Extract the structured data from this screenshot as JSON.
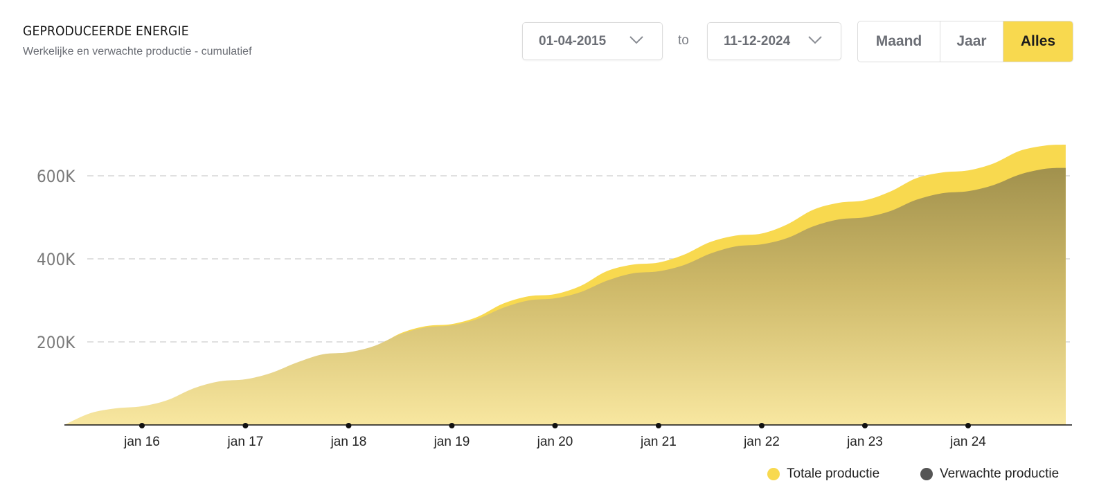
{
  "header": {
    "title": "GEPRODUCEERDE ENERGIE",
    "subtitle": "Werkelijke en verwachte productie - cumulatief"
  },
  "date_range": {
    "from": "01-04-2015",
    "separator": "to",
    "to": "11-12-2024"
  },
  "period_toggle": {
    "options": [
      "Maand",
      "Jaar",
      "Alles"
    ],
    "selected": "Alles"
  },
  "colors": {
    "actual": "#f8d94f",
    "expected": "#a89a55",
    "legend_expected": "#555555",
    "axis": "#111111",
    "grid": "#d5d5d5"
  },
  "chart_data": {
    "type": "area",
    "title": "GEPRODUCEERDE ENERGIE",
    "subtitle": "Werkelijke en verwachte productie - cumulatief",
    "xlabel": "",
    "ylabel": "",
    "x_ticks": [
      "jan 16",
      "jan 17",
      "jan 18",
      "jan 19",
      "jan 20",
      "jan 21",
      "jan 22",
      "jan 23",
      "jan 24"
    ],
    "y_ticks": [
      {
        "value": 200000,
        "label": "200K"
      },
      {
        "value": 400000,
        "label": "400K"
      },
      {
        "value": 600000,
        "label": "600K"
      }
    ],
    "ylim": [
      0,
      700000
    ],
    "xlim": [
      "2015-04-01",
      "2024-12-11"
    ],
    "grid": "horizontal dashed",
    "legend_position": "bottom-right",
    "series": [
      {
        "name": "Totale productie",
        "color": "#f8d94f",
        "points": [
          [
            "2015-04-01",
            0
          ],
          [
            "2015-07-01",
            12000
          ],
          [
            "2015-10-01",
            19000
          ],
          [
            "2016-01-01",
            22000
          ],
          [
            "2016-04-01",
            35000
          ],
          [
            "2016-07-01",
            65000
          ],
          [
            "2016-10-01",
            90000
          ],
          [
            "2017-01-01",
            97000
          ],
          [
            "2017-04-01",
            110000
          ],
          [
            "2017-07-01",
            140000
          ],
          [
            "2017-10-01",
            162000
          ],
          [
            "2018-01-01",
            168000
          ],
          [
            "2018-04-01",
            185000
          ],
          [
            "2018-07-01",
            220000
          ],
          [
            "2018-10-01",
            238000
          ],
          [
            "2019-01-01",
            243000
          ],
          [
            "2019-04-01",
            260000
          ],
          [
            "2019-07-01",
            292000
          ],
          [
            "2019-10-01",
            310000
          ],
          [
            "2020-01-01",
            315000
          ],
          [
            "2020-04-01",
            335000
          ],
          [
            "2020-07-01",
            370000
          ],
          [
            "2020-10-01",
            386000
          ],
          [
            "2021-01-01",
            391000
          ],
          [
            "2021-04-01",
            410000
          ],
          [
            "2021-07-01",
            440000
          ],
          [
            "2021-10-01",
            456000
          ],
          [
            "2022-01-01",
            461000
          ],
          [
            "2022-04-01",
            483000
          ],
          [
            "2022-07-01",
            518000
          ],
          [
            "2022-10-01",
            535000
          ],
          [
            "2023-01-01",
            541000
          ],
          [
            "2023-04-01",
            562000
          ],
          [
            "2023-07-01",
            594000
          ],
          [
            "2023-10-01",
            608000
          ],
          [
            "2024-01-01",
            613000
          ],
          [
            "2024-04-01",
            630000
          ],
          [
            "2024-07-01",
            660000
          ],
          [
            "2024-10-01",
            673000
          ],
          [
            "2024-12-11",
            675000
          ]
        ]
      },
      {
        "name": "Verwachte productie",
        "color": "#555555",
        "points": [
          [
            "2015-04-01",
            0
          ],
          [
            "2015-07-01",
            28000
          ],
          [
            "2015-10-01",
            40000
          ],
          [
            "2016-01-01",
            45000
          ],
          [
            "2016-04-01",
            60000
          ],
          [
            "2016-07-01",
            88000
          ],
          [
            "2016-10-01",
            105000
          ],
          [
            "2017-01-01",
            110000
          ],
          [
            "2017-04-01",
            125000
          ],
          [
            "2017-07-01",
            150000
          ],
          [
            "2017-10-01",
            170000
          ],
          [
            "2018-01-01",
            175000
          ],
          [
            "2018-04-01",
            190000
          ],
          [
            "2018-07-01",
            218000
          ],
          [
            "2018-10-01",
            235000
          ],
          [
            "2019-01-01",
            240000
          ],
          [
            "2019-04-01",
            255000
          ],
          [
            "2019-07-01",
            282000
          ],
          [
            "2019-10-01",
            300000
          ],
          [
            "2020-01-01",
            305000
          ],
          [
            "2020-04-01",
            320000
          ],
          [
            "2020-07-01",
            347000
          ],
          [
            "2020-10-01",
            365000
          ],
          [
            "2021-01-01",
            370000
          ],
          [
            "2021-04-01",
            385000
          ],
          [
            "2021-07-01",
            412000
          ],
          [
            "2021-10-01",
            430000
          ],
          [
            "2022-01-01",
            435000
          ],
          [
            "2022-04-01",
            450000
          ],
          [
            "2022-07-01",
            478000
          ],
          [
            "2022-10-01",
            495000
          ],
          [
            "2023-01-01",
            500000
          ],
          [
            "2023-04-01",
            515000
          ],
          [
            "2023-07-01",
            542000
          ],
          [
            "2023-10-01",
            558000
          ],
          [
            "2024-01-01",
            563000
          ],
          [
            "2024-04-01",
            578000
          ],
          [
            "2024-07-01",
            603000
          ],
          [
            "2024-10-01",
            617000
          ],
          [
            "2024-12-11",
            619000
          ]
        ]
      }
    ]
  }
}
